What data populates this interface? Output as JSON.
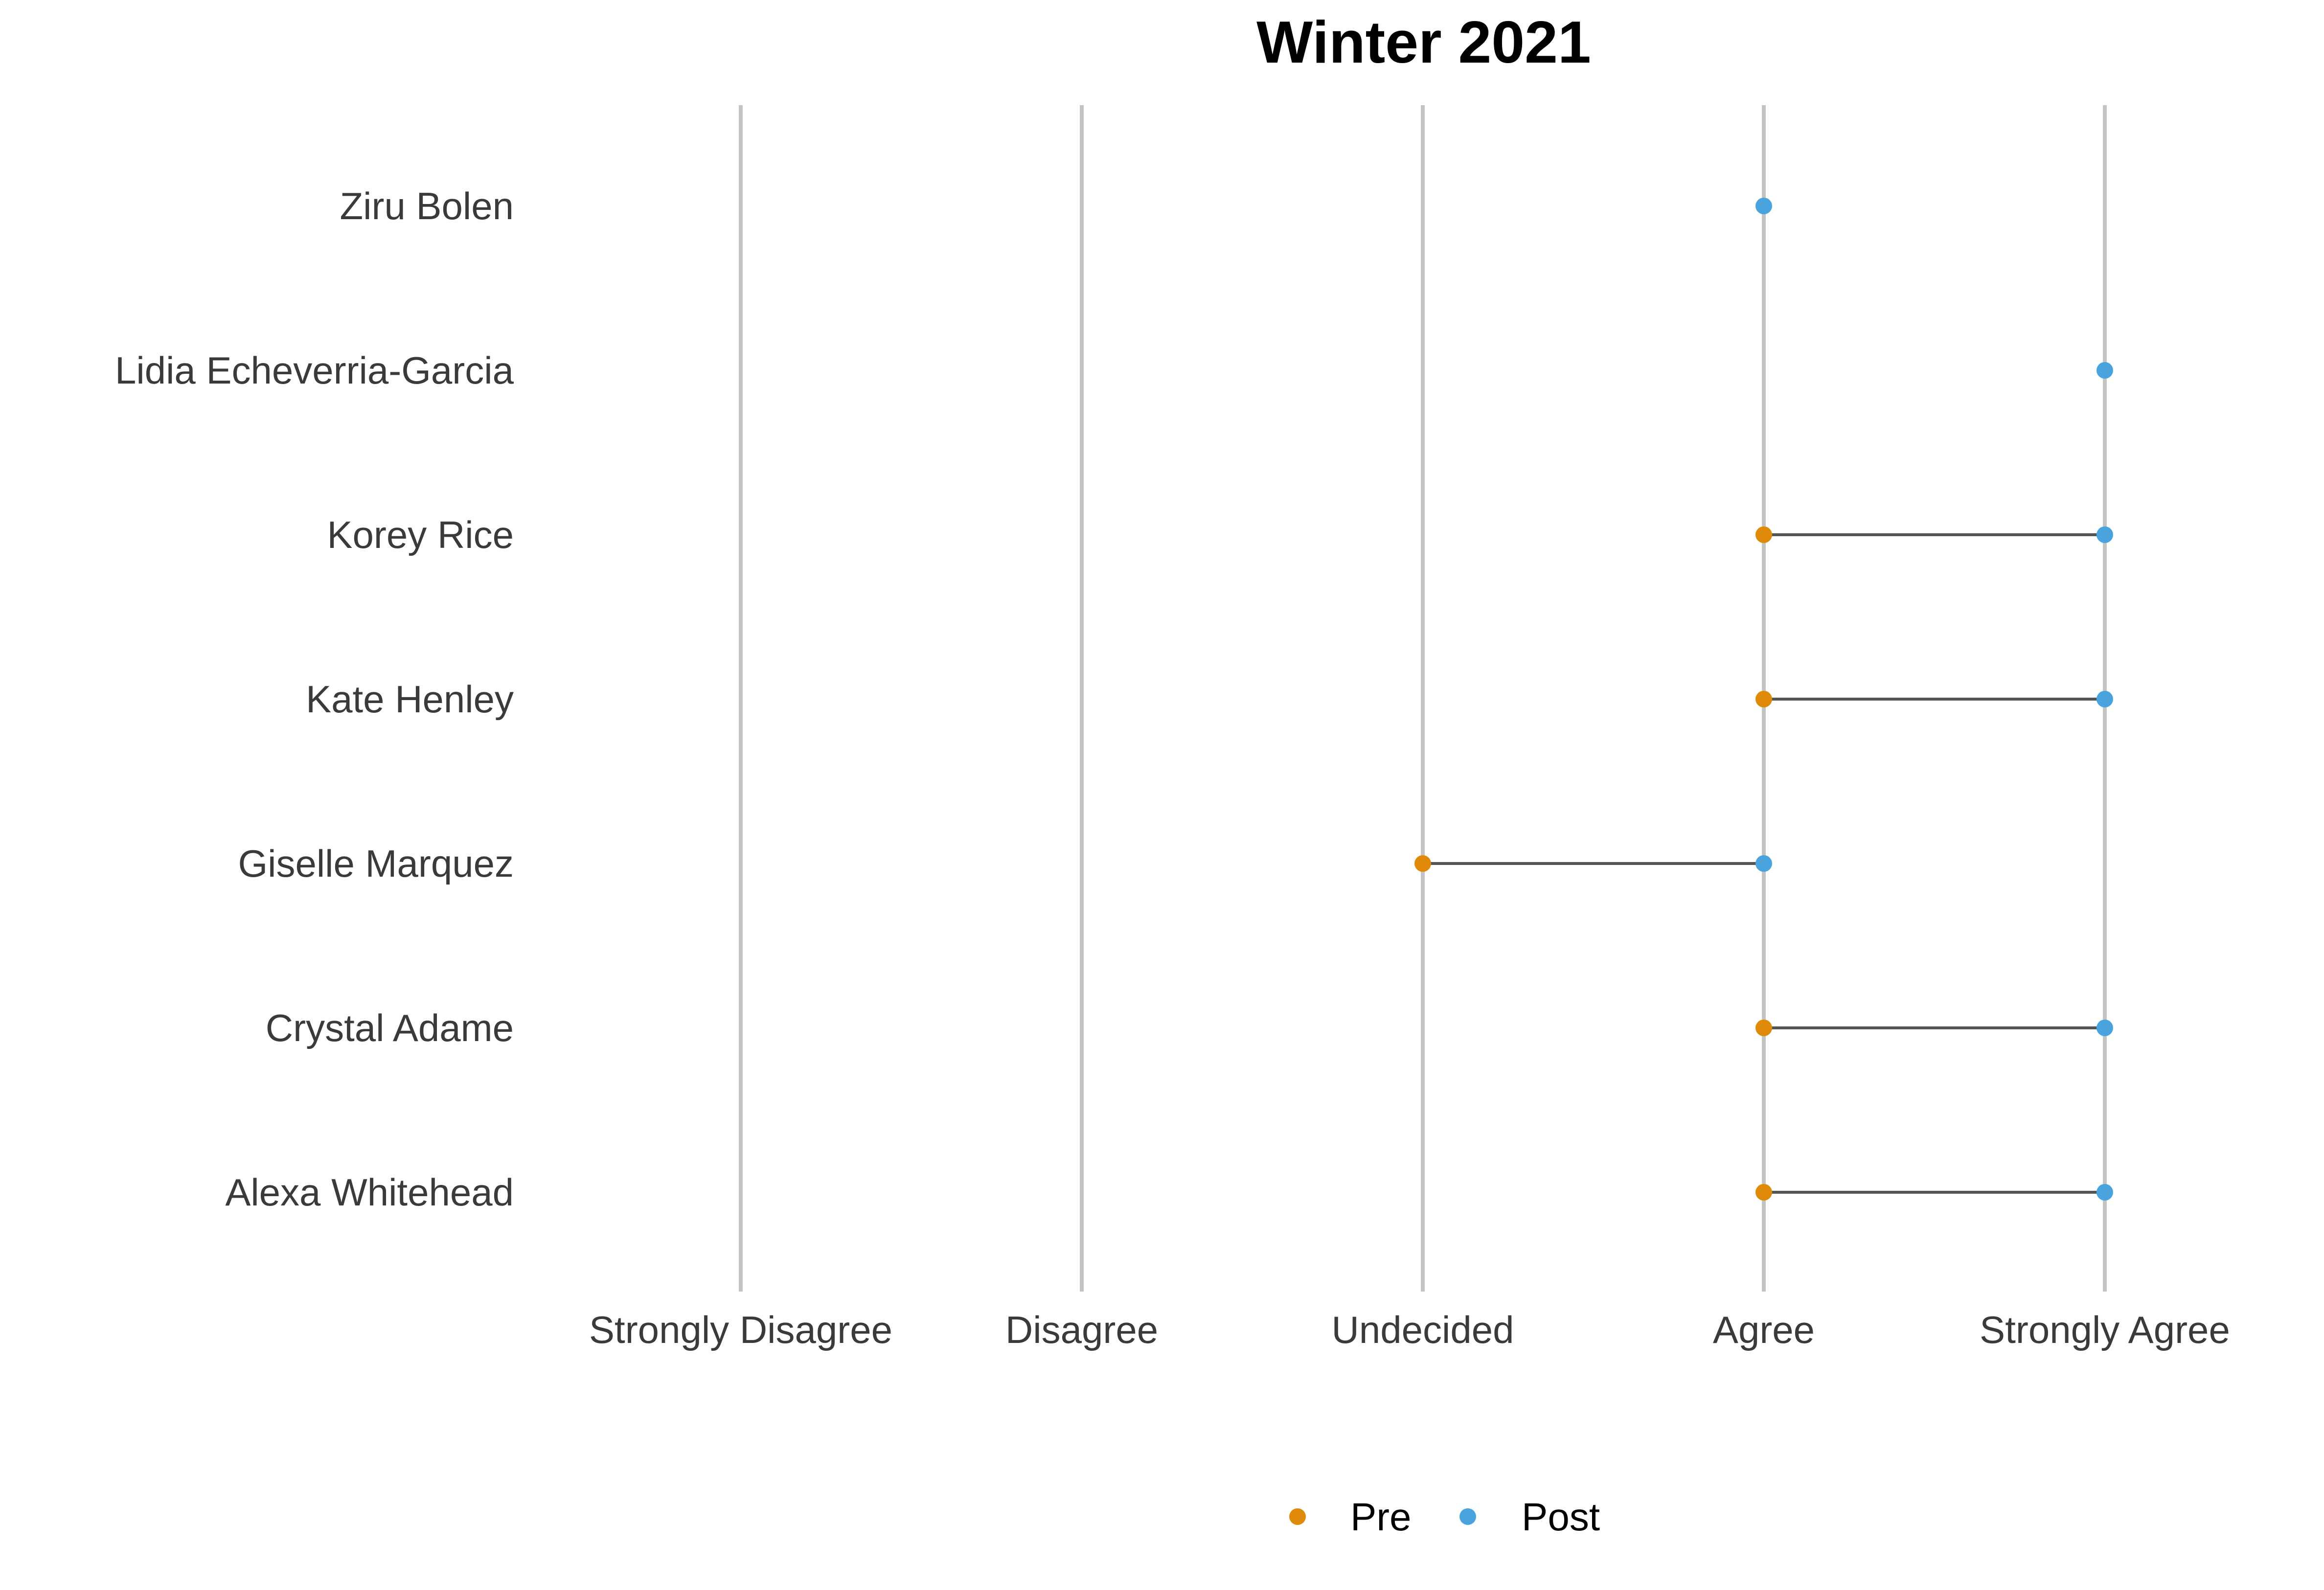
{
  "chart_data": {
    "type": "dumbbell",
    "title": "Winter 2021",
    "x_categories": [
      "Strongly Disagree",
      "Disagree",
      "Undecided",
      "Agree",
      "Strongly Agree"
    ],
    "rows": [
      {
        "name": "Ziru Bolen",
        "pre": null,
        "post": "Agree"
      },
      {
        "name": "Lidia Echeverria-Garcia",
        "pre": null,
        "post": "Strongly Agree"
      },
      {
        "name": "Korey Rice",
        "pre": "Agree",
        "post": "Strongly Agree"
      },
      {
        "name": "Kate Henley",
        "pre": "Agree",
        "post": "Strongly Agree"
      },
      {
        "name": "Giselle Marquez",
        "pre": "Undecided",
        "post": "Agree"
      },
      {
        "name": "Crystal Adame",
        "pre": "Agree",
        "post": "Strongly Agree"
      },
      {
        "name": "Alexa Whitehead",
        "pre": "Agree",
        "post": "Strongly Agree"
      }
    ],
    "series": [
      {
        "name": "Pre",
        "color": "#E08A0B"
      },
      {
        "name": "Post",
        "color": "#4BA3DD"
      }
    ],
    "legend_position": "bottom",
    "gridlines": "vertical",
    "gridline_color": "#c4c4c4",
    "connector_color": "#555555"
  }
}
